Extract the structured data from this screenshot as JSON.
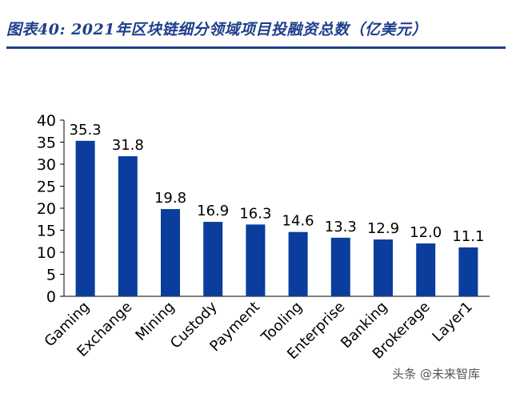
{
  "title": "图表40:  2021年区块链细分领域项目投融资总数（亿美元）",
  "watermark": "头条 @未来智库",
  "colors": {
    "bar": "#0a3d9c",
    "title": "#1f3e8c",
    "axis": "#000000"
  },
  "chart_data": {
    "type": "bar",
    "categories": [
      "Gaming",
      "Exchange",
      "Mining",
      "Custody",
      "Payment",
      "Tooling",
      "Enterprise",
      "Banking",
      "Brokerage",
      "Layer1"
    ],
    "values": [
      35.3,
      31.8,
      19.8,
      16.9,
      16.3,
      14.6,
      13.3,
      12.9,
      12.0,
      11.1
    ],
    "data_labels": [
      "35.3",
      "31.8",
      "19.8",
      "16.9",
      "16.3",
      "14.6",
      "13.3",
      "12.9",
      "12.0",
      "11.1"
    ],
    "ylim": [
      0,
      40
    ],
    "yticks": [
      "0",
      "5",
      "10",
      "15",
      "20",
      "25",
      "30",
      "35",
      "40"
    ],
    "grid": false,
    "xlabel": "",
    "ylabel": ""
  }
}
